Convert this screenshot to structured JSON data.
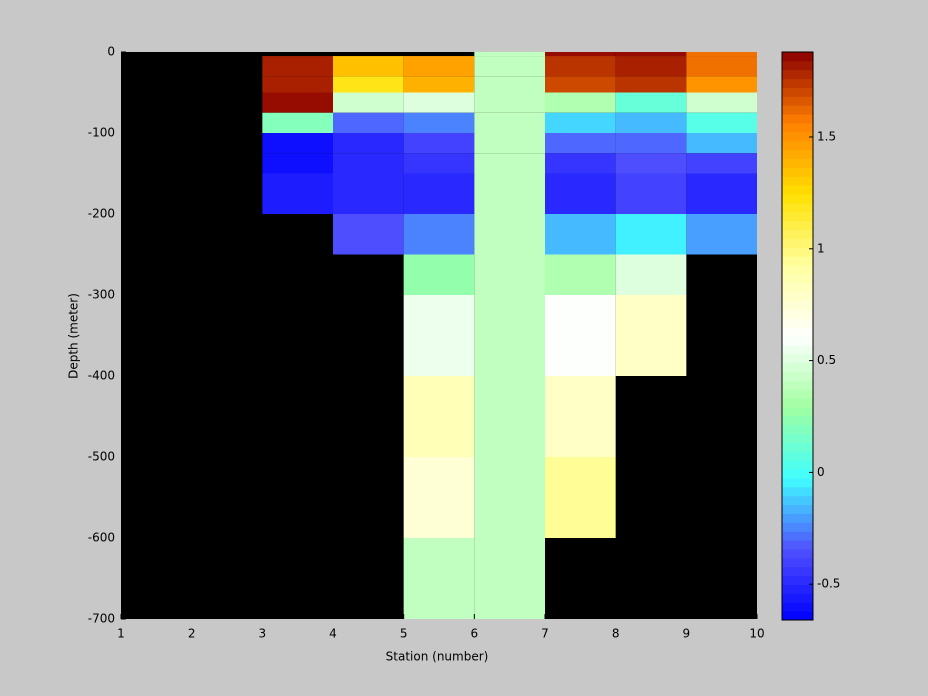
{
  "chart_data": {
    "type": "heatmap",
    "xlabel": "Station (number)",
    "ylabel": "Depth (meter)",
    "x_edges": [
      1,
      2,
      3,
      4,
      5,
      6,
      7,
      8,
      9,
      10
    ],
    "y_edges": [
      0,
      -5,
      -30,
      -50,
      -75,
      -100,
      -125,
      -150,
      -200,
      -250,
      -300,
      -400,
      -500,
      -600,
      -700
    ],
    "z": [
      [
        null,
        null,
        null,
        null,
        null,
        0.4,
        1.85,
        1.85,
        1.6
      ],
      [
        null,
        null,
        1.8,
        1.35,
        1.45,
        0.4,
        1.75,
        1.8,
        1.6
      ],
      [
        null,
        null,
        1.8,
        1.2,
        1.4,
        0.4,
        1.7,
        1.75,
        1.5
      ],
      [
        null,
        null,
        1.85,
        0.45,
        0.5,
        0.4,
        0.35,
        0.1,
        0.45
      ],
      [
        null,
        null,
        0.2,
        -0.3,
        -0.25,
        0.4,
        -0.1,
        -0.15,
        0.05
      ],
      [
        null,
        null,
        -0.6,
        -0.5,
        -0.4,
        0.4,
        -0.3,
        -0.3,
        -0.15
      ],
      [
        null,
        null,
        -0.6,
        -0.5,
        -0.45,
        0.4,
        -0.45,
        -0.35,
        -0.4
      ],
      [
        null,
        null,
        -0.55,
        -0.5,
        -0.5,
        0.4,
        -0.5,
        -0.4,
        -0.5
      ],
      [
        null,
        null,
        null,
        -0.35,
        -0.25,
        0.4,
        -0.15,
        -0.05,
        -0.2
      ],
      [
        null,
        null,
        null,
        null,
        0.25,
        0.4,
        0.35,
        0.5,
        null
      ],
      [
        null,
        null,
        null,
        null,
        0.55,
        0.4,
        0.6,
        0.8,
        null
      ],
      [
        null,
        null,
        null,
        null,
        0.85,
        0.4,
        0.8,
        null,
        null
      ],
      [
        null,
        null,
        null,
        null,
        0.75,
        0.4,
        0.95,
        null,
        null
      ],
      [
        null,
        null,
        null,
        null,
        0.4,
        0.4,
        null,
        null,
        null
      ]
    ],
    "xlim": [
      1,
      10
    ],
    "ylim": [
      -700,
      0
    ],
    "xticks": [
      1,
      2,
      3,
      4,
      5,
      6,
      7,
      8,
      9,
      10
    ],
    "yticks": [
      0,
      -100,
      -200,
      -300,
      -400,
      -500,
      -600,
      -700
    ],
    "clim": [
      -0.66,
      1.88
    ],
    "cticks": [
      -0.5,
      0,
      0.5,
      1,
      1.5
    ],
    "colormap": [
      "#0000ff",
      "#5050ff",
      "#40ffff",
      "#a0ffa0",
      "#ffffff",
      "#ffffa0",
      "#ffe000",
      "#ff8000",
      "#8b0000"
    ],
    "background": "#000000"
  }
}
